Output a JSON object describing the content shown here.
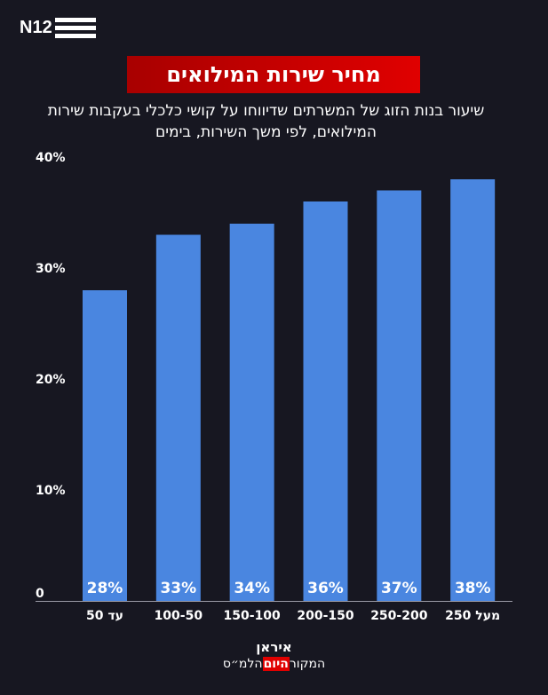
{
  "logo": "N12",
  "header": {
    "title": "מחיר שירות המילואים",
    "subtitle": "שיעור בנות הזוג של המשרתים שדיווחו על קושי כלכלי בעקבות שירות המילואים, לפי משך השירות, בימים"
  },
  "chart_data": {
    "type": "bar",
    "title": "מחיר שירות המילואים",
    "subtitle": "שיעור בנות הזוג של המשרתים שדיווחו על קושי כלכלי בעקבות שירות המילואים, לפי משך השירות, בימים",
    "categories": [
      "עד 50",
      "100-50",
      "150-100",
      "200-150",
      "250-200",
      "מעל 250"
    ],
    "values": [
      28,
      33,
      34,
      36,
      37,
      38
    ],
    "value_labels": [
      "28%",
      "33%",
      "34%",
      "36%",
      "37%",
      "38%"
    ],
    "yticks": [
      0,
      10,
      20,
      30,
      40
    ],
    "ytick_labels": [
      "0",
      "10%",
      "20%",
      "30%",
      "40%"
    ],
    "ylim": [
      0,
      40
    ],
    "xlabel": "",
    "ylabel": "",
    "bar_color": "#4a86e0",
    "grid": false
  },
  "footer": {
    "brand": "איראן",
    "source_prefix": "המקור",
    "source_logo": "היום",
    "source": "הלמ״ס"
  }
}
